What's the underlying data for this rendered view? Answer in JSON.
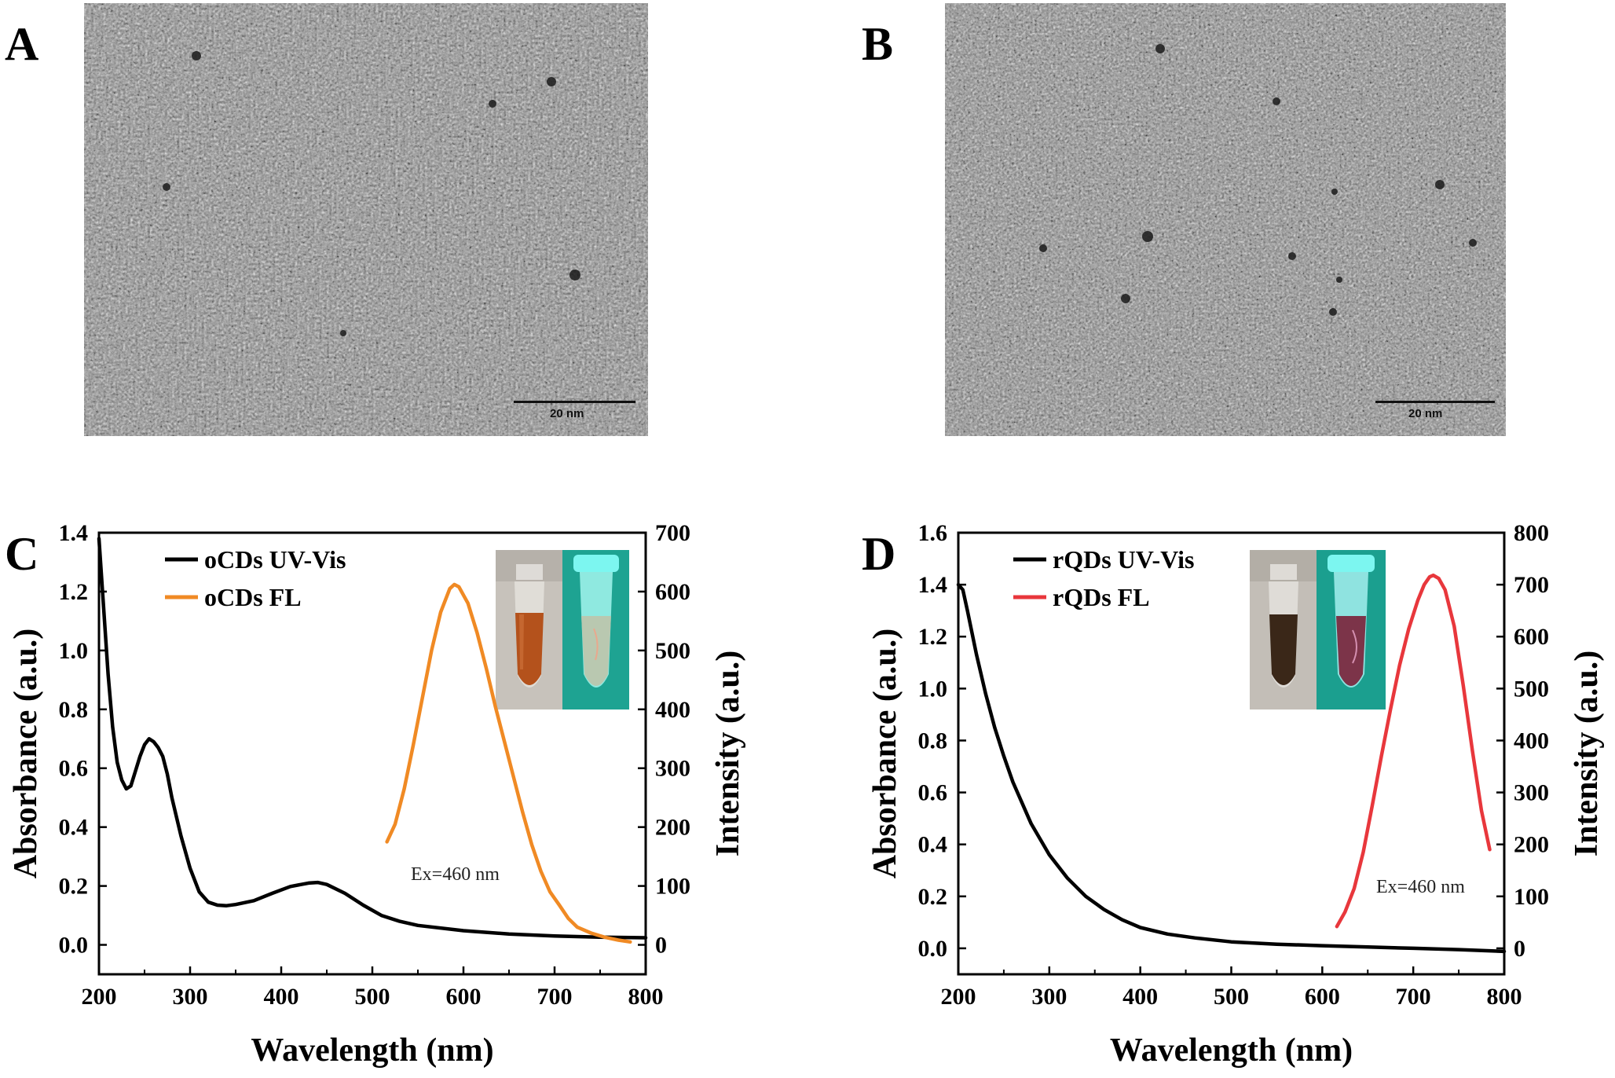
{
  "panels": {
    "a": {
      "letter": "A",
      "scale_label": "20 nm"
    },
    "b": {
      "letter": "B",
      "scale_label": "20 nm"
    },
    "c": {
      "letter": "C"
    },
    "d": {
      "letter": "D"
    }
  },
  "chart_data": [
    {
      "id": "C",
      "type": "line",
      "xlabel": "Wavelength (nm)",
      "ylabel_left": "Absorbance (a.u.)",
      "ylabel_right": "Intensity (a.u.)",
      "xlim": [
        200,
        800
      ],
      "xticks": [
        200,
        300,
        400,
        500,
        600,
        700,
        800
      ],
      "ylim_left": [
        -0.1,
        1.4
      ],
      "yticks_left": [
        "0.0",
        "0.2",
        "0.4",
        "0.6",
        "0.8",
        "1.0",
        "1.2",
        "1.4"
      ],
      "ylim_right": [
        0,
        700
      ],
      "yticks_right": [
        0,
        100,
        200,
        300,
        400,
        500,
        600,
        700
      ],
      "legend_placement": "top-left",
      "annotation": "Ex=460 nm",
      "series": [
        {
          "name": "oCDs UV-Vis",
          "axis": "left",
          "color": "#000000",
          "x": [
            200,
            205,
            210,
            215,
            220,
            225,
            230,
            235,
            240,
            245,
            250,
            255,
            260,
            265,
            270,
            275,
            280,
            290,
            300,
            310,
            320,
            330,
            340,
            350,
            370,
            390,
            410,
            430,
            440,
            450,
            470,
            490,
            510,
            530,
            550,
            600,
            650,
            700,
            750,
            800
          ],
          "y": [
            1.38,
            1.15,
            0.92,
            0.74,
            0.62,
            0.56,
            0.53,
            0.54,
            0.59,
            0.64,
            0.68,
            0.7,
            0.69,
            0.67,
            0.64,
            0.58,
            0.5,
            0.37,
            0.26,
            0.18,
            0.145,
            0.135,
            0.133,
            0.137,
            0.15,
            0.175,
            0.198,
            0.21,
            0.212,
            0.205,
            0.175,
            0.135,
            0.1,
            0.08,
            0.066,
            0.048,
            0.037,
            0.03,
            0.026,
            0.024
          ]
        },
        {
          "name": "oCDs FL",
          "axis": "right",
          "color": "#f08a24",
          "x": [
            516,
            525,
            535,
            545,
            555,
            565,
            575,
            585,
            590,
            595,
            605,
            615,
            625,
            635,
            645,
            655,
            665,
            675,
            685,
            695,
            705,
            715,
            725,
            740,
            755,
            770,
            783
          ],
          "y": [
            175,
            205,
            265,
            340,
            420,
            500,
            565,
            605,
            612,
            608,
            580,
            530,
            470,
            405,
            345,
            285,
            225,
            170,
            125,
            90,
            68,
            45,
            30,
            20,
            13,
            8,
            5
          ]
        }
      ]
    },
    {
      "id": "D",
      "type": "line",
      "xlabel": "Wavelength (nm)",
      "ylabel_left": "Absorbance (a.u.)",
      "ylabel_right": "Intensity (a.u.)",
      "xlim": [
        200,
        800
      ],
      "xticks": [
        200,
        300,
        400,
        500,
        600,
        700,
        800
      ],
      "ylim_left": [
        -0.1,
        1.6
      ],
      "yticks_left": [
        "0.0",
        "0.2",
        "0.4",
        "0.6",
        "0.8",
        "1.0",
        "1.2",
        "1.4",
        "1.6"
      ],
      "ylim_right": [
        0,
        800
      ],
      "yticks_right": [
        0,
        100,
        200,
        300,
        400,
        500,
        600,
        700,
        800
      ],
      "legend_placement": "top-left",
      "annotation": "Ex=460 nm",
      "series": [
        {
          "name": "rQDs UV-Vis",
          "axis": "left",
          "color": "#000000",
          "x": [
            200,
            205,
            210,
            220,
            230,
            240,
            250,
            260,
            270,
            280,
            290,
            300,
            320,
            340,
            360,
            380,
            400,
            430,
            460,
            500,
            550,
            600,
            650,
            700,
            750,
            800
          ],
          "y": [
            1.4,
            1.38,
            1.3,
            1.13,
            0.98,
            0.85,
            0.74,
            0.64,
            0.56,
            0.48,
            0.42,
            0.36,
            0.27,
            0.2,
            0.15,
            0.11,
            0.08,
            0.055,
            0.04,
            0.025,
            0.016,
            0.01,
            0.005,
            0.0,
            -0.005,
            -0.012
          ]
        },
        {
          "name": "rQDs FL",
          "axis": "right",
          "color": "#e8373c",
          "x": [
            616,
            625,
            635,
            645,
            655,
            665,
            675,
            685,
            695,
            705,
            712,
            718,
            722,
            728,
            735,
            745,
            755,
            765,
            775,
            784
          ],
          "y": [
            42,
            70,
            115,
            185,
            275,
            370,
            460,
            545,
            615,
            670,
            700,
            715,
            718,
            712,
            690,
            620,
            505,
            380,
            265,
            190
          ]
        }
      ]
    }
  ]
}
